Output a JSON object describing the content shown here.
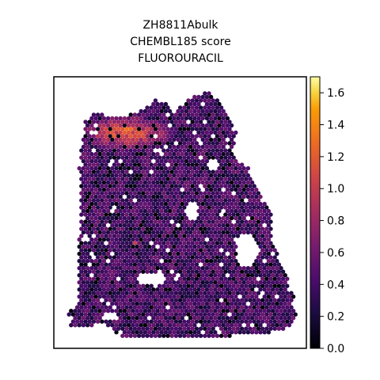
{
  "chart_data": {
    "type": "scatter",
    "subtype": "spatial-hexbin",
    "title": [
      "ZH8811Abulk",
      "CHEMBL185 score",
      "FLUOROURACIL"
    ],
    "xlabel": "",
    "ylabel": "",
    "colormap": "inferno",
    "colorbar": {
      "min": 0.0,
      "max": 1.7,
      "ticks": [
        "0.0",
        "0.2",
        "0.4",
        "0.6",
        "0.8",
        "1.0",
        "1.2",
        "1.4",
        "1.6"
      ],
      "tick_values": [
        0.0,
        0.2,
        0.4,
        0.6,
        0.8,
        1.0,
        1.2,
        1.4,
        1.6
      ],
      "placement": "right"
    },
    "grid": false,
    "typical_score": 0.45,
    "hotspots": [
      {
        "region": "upper-left tissue edge",
        "score": 1.4
      },
      {
        "region": "center-left spot",
        "score": 1.0
      }
    ]
  }
}
